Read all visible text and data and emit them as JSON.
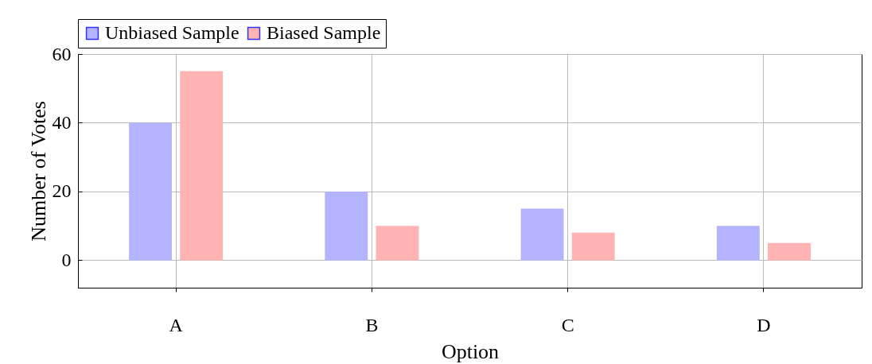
{
  "chart_data": {
    "type": "bar",
    "xlabel": "Option",
    "ylabel": "Number of Votes",
    "categories": [
      "A",
      "B",
      "C",
      "D"
    ],
    "series": [
      {
        "name": "Unbiased Sample",
        "color": "#b3b3ff",
        "values": [
          40,
          20,
          15,
          10
        ]
      },
      {
        "name": "Biased Sample",
        "color": "#ffb3b3",
        "values": [
          55,
          10,
          8,
          5
        ]
      }
    ],
    "ylim": [
      -8,
      60
    ],
    "yticks": [
      0,
      20,
      40,
      60
    ],
    "grid": true,
    "legend": "top"
  }
}
